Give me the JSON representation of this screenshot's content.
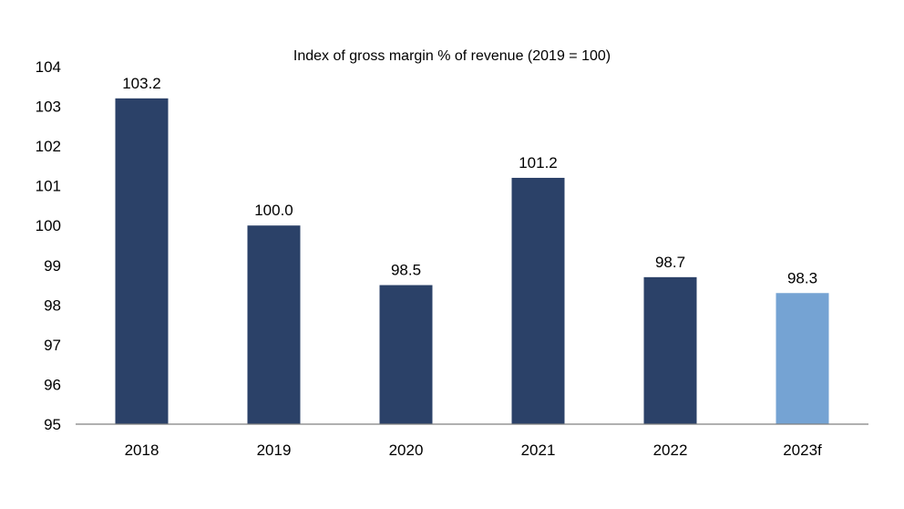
{
  "chart_data": {
    "type": "bar",
    "title": "Index of gross margin % of revenue (2019 = 100)",
    "xlabel": "",
    "ylabel": "",
    "categories": [
      "2018",
      "2019",
      "2020",
      "2021",
      "2022",
      "2023f"
    ],
    "values": [
      103.2,
      100.0,
      98.5,
      101.2,
      98.7,
      98.3
    ],
    "data_labels": [
      "103.2",
      "100.0",
      "98.5",
      "101.2",
      "98.7",
      "98.3"
    ],
    "ylim": [
      95,
      104
    ],
    "yticks": [
      "95",
      "96",
      "97",
      "98",
      "99",
      "100",
      "101",
      "102",
      "103",
      "104"
    ],
    "grid": false,
    "legend": "none",
    "colors": {
      "actual": "#2b4168",
      "forecast": "#75a3d3",
      "axis": "#808080"
    },
    "forecast_categories": [
      "2023f"
    ]
  }
}
